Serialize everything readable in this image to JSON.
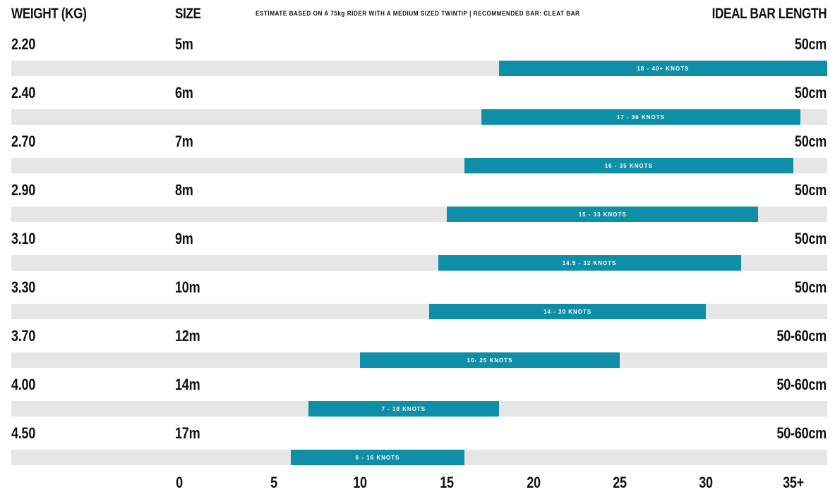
{
  "headers": {
    "weight": "WEIGHT (KG)",
    "size": "SIZE",
    "note": "ESTIMATE BASED ON A 75kg RIDER WITH A MEDIUM SIZED TWINTIP  |  RECOMMENDED BAR: CLEAT BAR",
    "bar_length": "IDEAL BAR LENGTH"
  },
  "chart_data": {
    "type": "bar",
    "orientation": "horizontal-range",
    "xlim": [
      0,
      35
    ],
    "x_ticks": [
      "0",
      "5",
      "10",
      "15",
      "20",
      "25",
      "30",
      "35+"
    ],
    "colors": {
      "bar": "#0e8fa7",
      "track": "#e6e6e6"
    },
    "rows": [
      {
        "weight": "2.20",
        "size": "5m",
        "bar_length": "50cm",
        "range_label": "18 - 40+ KNOTS",
        "min": 18,
        "max": 40
      },
      {
        "weight": "2.40",
        "size": "6m",
        "bar_length": "50cm",
        "range_label": "17 - 36 KNOTS",
        "min": 17,
        "max": 36
      },
      {
        "weight": "2.70",
        "size": "7m",
        "bar_length": "50cm",
        "range_label": "16 - 35 KNOTS",
        "min": 16,
        "max": 35
      },
      {
        "weight": "2.90",
        "size": "8m",
        "bar_length": "50cm",
        "range_label": "15 - 33 KNOTS",
        "min": 15,
        "max": 33
      },
      {
        "weight": "3.10",
        "size": "9m",
        "bar_length": "50cm",
        "range_label": "14.5 - 32 KNOTS",
        "min": 14.5,
        "max": 32
      },
      {
        "weight": "3.30",
        "size": "10m",
        "bar_length": "50cm",
        "range_label": "14 - 30 KNOTS",
        "min": 14,
        "max": 30
      },
      {
        "weight": "3.70",
        "size": "12m",
        "bar_length": "50-60cm",
        "range_label": "10- 25 KNOTS",
        "min": 10,
        "max": 25
      },
      {
        "weight": "4.00",
        "size": "14m",
        "bar_length": "50-60cm",
        "range_label": "7 - 18 KNOTS",
        "min": 7,
        "max": 18
      },
      {
        "weight": "4.50",
        "size": "17m",
        "bar_length": "50-60cm",
        "range_label": "6 - 16 KNOTS",
        "min": 6,
        "max": 16
      }
    ]
  }
}
